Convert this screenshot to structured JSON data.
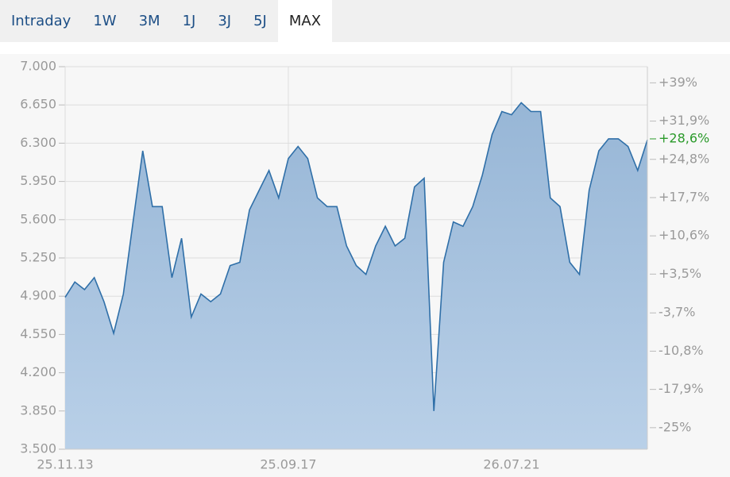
{
  "tabs": {
    "items": [
      "Intraday",
      "1W",
      "3M",
      "1J",
      "3J",
      "5J",
      "MAX"
    ],
    "active": 6
  },
  "chart_data": {
    "type": "area",
    "categories": [
      "25.11.13",
      null,
      null,
      null,
      null,
      null,
      null,
      null,
      null,
      null,
      null,
      null,
      null,
      null,
      null,
      null,
      null,
      null,
      null,
      null,
      null,
      null,
      null,
      "25.09.17",
      null,
      null,
      null,
      null,
      null,
      null,
      null,
      null,
      null,
      null,
      null,
      null,
      null,
      null,
      null,
      null,
      null,
      null,
      null,
      null,
      null,
      null,
      "26.07.21",
      null,
      null,
      null,
      null,
      null,
      null,
      null,
      null,
      null,
      null,
      null,
      null,
      null,
      null
    ],
    "series": [
      {
        "color": "#2f6fa8",
        "values": [
          4890,
          5030,
          4960,
          5070,
          4850,
          4560,
          4920,
          5580,
          6230,
          5720,
          5720,
          5070,
          5430,
          4710,
          4920,
          4850,
          4920,
          5180,
          5210,
          5690,
          5870,
          6050,
          5800,
          6160,
          6270,
          6160,
          5800,
          5720,
          5720,
          5360,
          5180,
          5100,
          5360,
          5540,
          5360,
          5430,
          5900,
          5980,
          3850,
          5210,
          5580,
          5540,
          5720,
          6010,
          6380,
          6590,
          6560,
          6670,
          6590,
          6590,
          5800,
          5720,
          5210,
          5100,
          5870,
          6230,
          6340,
          6340,
          6270,
          6050,
          6330
        ]
      }
    ],
    "ylim": [
      3500,
      7000
    ],
    "yticks": [
      {
        "value": 7000,
        "label": "7.000"
      },
      {
        "value": 6650,
        "label": "6.650"
      },
      {
        "value": 6300,
        "label": "6.300"
      },
      {
        "value": 5950,
        "label": "5.950"
      },
      {
        "value": 5600,
        "label": "5.600"
      },
      {
        "value": 5250,
        "label": "5.250"
      },
      {
        "value": 4900,
        "label": "4.900"
      },
      {
        "value": 4550,
        "label": "4.550"
      },
      {
        "value": 4200,
        "label": "4.200"
      },
      {
        "value": 3850,
        "label": "3.850"
      },
      {
        "value": 3500,
        "label": "3.500"
      }
    ],
    "y2lim": [
      -29,
      42
    ],
    "y2ticks": [
      {
        "value": 39,
        "label": "+39%"
      },
      {
        "value": 31.9,
        "label": "+31,9%"
      },
      {
        "value": 24.8,
        "label": "+24,8%"
      },
      {
        "value": 17.7,
        "label": "+17,7%"
      },
      {
        "value": 10.6,
        "label": "+10,6%"
      },
      {
        "value": 3.5,
        "label": "+3,5%"
      },
      {
        "value": -3.7,
        "label": "-3,7%"
      },
      {
        "value": -10.8,
        "label": "-10,8%"
      },
      {
        "value": -17.9,
        "label": "-17,9%"
      },
      {
        "value": -25,
        "label": "-25%"
      }
    ],
    "current": {
      "value": 28.6,
      "label": "+28,6%",
      "color": "#2a9a2a"
    },
    "grid": true
  }
}
